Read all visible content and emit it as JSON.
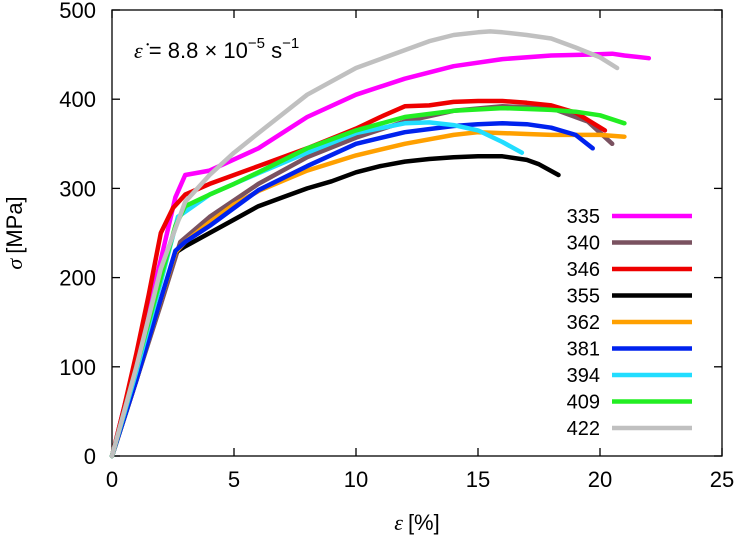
{
  "chart_data": {
    "type": "line",
    "xlabel_symbol": "ε",
    "xlabel_unit": "[%]",
    "ylabel_symbol": "σ",
    "ylabel_unit": "[MPa]",
    "xlim": [
      0,
      25
    ],
    "ylim": [
      0,
      500
    ],
    "xticks": [
      0,
      5,
      10,
      15,
      20,
      25
    ],
    "yticks": [
      0,
      100,
      200,
      300,
      400,
      500
    ],
    "grid": false,
    "legend_position": "bottom-right",
    "annotation": {
      "symbol": "ε̇",
      "equals": " = 8.8 × 10",
      "exponent": "−5",
      "unit": " s",
      "unit_exponent": "−1"
    },
    "series": [
      {
        "name": "335",
        "color": "#ff00ff",
        "x": [
          0,
          1,
          2,
          2.6,
          3.0,
          4,
          6,
          8,
          10,
          12,
          14,
          16,
          18,
          19.5,
          20.5,
          21,
          22
        ],
        "y": [
          0,
          110,
          220,
          290,
          315,
          320,
          345,
          380,
          405,
          423,
          437,
          445,
          449,
          450,
          451,
          449,
          446
        ]
      },
      {
        "name": "340",
        "color": "#7a5260",
        "x": [
          0,
          1,
          2,
          2.8,
          4,
          6,
          8,
          10,
          12,
          14,
          16,
          18,
          19.5,
          20.5
        ],
        "y": [
          0,
          85,
          170,
          240,
          268,
          305,
          335,
          357,
          375,
          387,
          392,
          390,
          375,
          350
        ]
      },
      {
        "name": "346",
        "color": "#ee0000",
        "x": [
          0,
          0.5,
          1,
          1.5,
          2,
          2.5,
          3,
          4,
          5,
          6,
          8,
          10,
          11,
          12,
          13,
          14,
          15,
          16,
          17,
          18,
          19,
          20.2
        ],
        "y": [
          0,
          55,
          115,
          180,
          250,
          278,
          293,
          305,
          315,
          325,
          345,
          367,
          380,
          392,
          393,
          397,
          398,
          398,
          396,
          393,
          385,
          365
        ]
      },
      {
        "name": "355",
        "color": "#000000",
        "x": [
          0,
          1,
          2.6,
          3,
          4,
          5,
          6,
          7,
          8,
          9,
          10,
          11,
          12,
          13,
          14,
          15,
          16,
          17,
          17.5,
          18.3
        ],
        "y": [
          0,
          85,
          228,
          235,
          250,
          265,
          280,
          290,
          300,
          308,
          318,
          325,
          330,
          333,
          335,
          336,
          336,
          332,
          327,
          315
        ]
      },
      {
        "name": "362",
        "color": "#ffa000",
        "x": [
          0,
          1,
          2.6,
          3,
          4,
          5,
          6,
          8,
          10,
          12,
          14,
          15,
          16,
          17,
          18,
          19,
          20,
          21
        ],
        "y": [
          0,
          85,
          228,
          240,
          262,
          282,
          297,
          320,
          337,
          350,
          360,
          363,
          362,
          361,
          360,
          360,
          360,
          358
        ]
      },
      {
        "name": "381",
        "color": "#0022ee",
        "x": [
          0,
          1,
          2.6,
          3,
          4,
          5,
          6,
          8,
          10,
          12,
          14,
          15,
          16,
          17,
          18,
          19,
          19.7
        ],
        "y": [
          0,
          85,
          230,
          240,
          258,
          278,
          298,
          325,
          350,
          363,
          370,
          372,
          373,
          372,
          368,
          360,
          345
        ]
      },
      {
        "name": "394",
        "color": "#22ddff",
        "x": [
          0,
          1,
          2,
          2.7,
          4,
          6,
          8,
          10,
          12,
          13,
          14,
          15,
          16,
          16.8
        ],
        "y": [
          0,
          95,
          195,
          268,
          293,
          317,
          340,
          362,
          373,
          374,
          371,
          365,
          352,
          340
        ]
      },
      {
        "name": "409",
        "color": "#22ee22",
        "x": [
          0,
          1,
          2,
          2.6,
          3,
          4,
          5,
          6,
          8,
          10,
          12,
          14,
          16,
          18,
          19,
          20,
          21
        ],
        "y": [
          0,
          100,
          200,
          258,
          280,
          293,
          305,
          318,
          345,
          365,
          380,
          387,
          390,
          388,
          386,
          382,
          373
        ]
      },
      {
        "name": "422",
        "color": "#c0c0c0",
        "x": [
          0,
          1,
          2,
          2.6,
          3,
          4,
          5,
          6,
          8,
          10,
          12,
          13,
          14,
          15,
          15.5,
          16,
          17,
          18,
          19,
          20,
          20.7
        ],
        "y": [
          0,
          100,
          210,
          255,
          285,
          315,
          340,
          362,
          405,
          435,
          455,
          465,
          472,
          475,
          476,
          475,
          472,
          468,
          458,
          447,
          435
        ]
      }
    ]
  }
}
